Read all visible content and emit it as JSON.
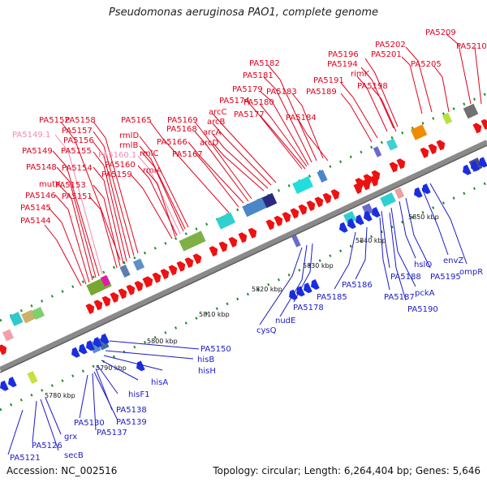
{
  "header": {
    "title": "Pseudomonas aeruginosa PAO1, complete genome"
  },
  "footer": {
    "accession": "Accession: NC_002516",
    "topology": "Topology: circular; Length: 6,264,404 bp; Genes: 5,646"
  },
  "colors": {
    "forward_label": "#e0001b",
    "forward_label_pseudo": "#f08ab0",
    "reverse_label": "#1a1ac8",
    "forward_arrow": "#ee1111",
    "reverse_arrow": "#1a2ee0",
    "backbone": "#777777",
    "tick": "#1f8a2a"
  },
  "scale_ticks": [
    {
      "label": "5780 kbp",
      "kbp": 5780
    },
    {
      "label": "5790 kbp",
      "kbp": 5790
    },
    {
      "label": "5800 kbp",
      "kbp": 5800
    },
    {
      "label": "5810 kbp",
      "kbp": 5810
    },
    {
      "label": "5820 kbp",
      "kbp": 5820
    },
    {
      "label": "5830 kbp",
      "kbp": 5830
    },
    {
      "label": "5840 kbp",
      "kbp": 5840
    },
    {
      "label": "5850 kbp",
      "kbp": 5850
    }
  ],
  "forward_labels": [
    {
      "text": "PA5209"
    },
    {
      "text": "PA5210"
    },
    {
      "text": "PA5202"
    },
    {
      "text": "PA5201"
    },
    {
      "text": "PA5196"
    },
    {
      "text": "PA5194"
    },
    {
      "text": "PA5205"
    },
    {
      "text": "rimK"
    },
    {
      "text": "PA5191"
    },
    {
      "text": "PA5198"
    },
    {
      "text": "PA5189"
    },
    {
      "text": "PA5182"
    },
    {
      "text": "PA5181"
    },
    {
      "text": "PA5179"
    },
    {
      "text": "PA5183"
    },
    {
      "text": "PA5174"
    },
    {
      "text": "PA5180"
    },
    {
      "text": "arcC"
    },
    {
      "text": "PA5177"
    },
    {
      "text": "PA5184"
    },
    {
      "text": "arcB"
    },
    {
      "text": "PA5165"
    },
    {
      "text": "PA5169"
    },
    {
      "text": "PA5168"
    },
    {
      "text": "arcA"
    },
    {
      "text": "PA5152"
    },
    {
      "text": "PA5158"
    },
    {
      "text": "PA5157"
    },
    {
      "text": "PA5156"
    },
    {
      "text": "rmlD"
    },
    {
      "text": "rmlB"
    },
    {
      "text": "PA5166"
    },
    {
      "text": "arcD"
    },
    {
      "text": "PA5149.1"
    },
    {
      "text": "PA5155"
    },
    {
      "text": "rmlC"
    },
    {
      "text": "PA5167"
    },
    {
      "text": "PA5149"
    },
    {
      "text": "PA5160.1"
    },
    {
      "text": "PA5160"
    },
    {
      "text": "PA5148"
    },
    {
      "text": "PA5154"
    },
    {
      "text": "rmlA"
    },
    {
      "text": "PA5159"
    },
    {
      "text": "mutY"
    },
    {
      "text": "PA5153"
    },
    {
      "text": "PA5146"
    },
    {
      "text": "PA5151"
    },
    {
      "text": "PA5145"
    },
    {
      "text": "PA5144"
    }
  ],
  "reverse_labels": [
    {
      "text": "PA5150"
    },
    {
      "text": "hisB"
    },
    {
      "text": "hisH"
    },
    {
      "text": "hisA"
    },
    {
      "text": "hisF1"
    },
    {
      "text": "PA5138"
    },
    {
      "text": "PA5139"
    },
    {
      "text": "PA5130"
    },
    {
      "text": "PA5137"
    },
    {
      "text": "grx"
    },
    {
      "text": "PA5126"
    },
    {
      "text": "secB"
    },
    {
      "text": "PA5121"
    },
    {
      "text": "cysQ"
    },
    {
      "text": "nudE"
    },
    {
      "text": "PA5178"
    },
    {
      "text": "PA5185"
    },
    {
      "text": "PA5186"
    },
    {
      "text": "PA5188"
    },
    {
      "text": "PA5187"
    },
    {
      "text": "hslO"
    },
    {
      "text": "pckA"
    },
    {
      "text": "PA5190"
    },
    {
      "text": "PA5195"
    },
    {
      "text": "envZ"
    },
    {
      "text": "ompR"
    }
  ]
}
